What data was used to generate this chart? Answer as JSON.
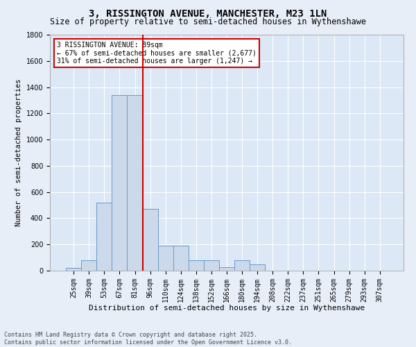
{
  "title": "3, RISSINGTON AVENUE, MANCHESTER, M23 1LN",
  "subtitle": "Size of property relative to semi-detached houses in Wythenshawe",
  "xlabel": "Distribution of semi-detached houses by size in Wythenshawe",
  "ylabel": "Number of semi-detached properties",
  "bin_labels": [
    "25sqm",
    "39sqm",
    "53sqm",
    "67sqm",
    "81sqm",
    "96sqm",
    "110sqm",
    "124sqm",
    "138sqm",
    "152sqm",
    "166sqm",
    "180sqm",
    "194sqm",
    "208sqm",
    "222sqm",
    "237sqm",
    "251sqm",
    "265sqm",
    "279sqm",
    "293sqm",
    "307sqm"
  ],
  "bar_values": [
    20,
    80,
    520,
    1340,
    1340,
    470,
    190,
    190,
    80,
    80,
    25,
    80,
    50,
    0,
    0,
    0,
    0,
    0,
    0,
    0,
    0
  ],
  "bar_color": "#ccd9ea",
  "bar_edge_color": "#6699cc",
  "property_bin_index": 4,
  "annotation_title": "3 RISSINGTON AVENUE: 89sqm",
  "annotation_line1": "← 67% of semi-detached houses are smaller (2,677)",
  "annotation_line2": "31% of semi-detached houses are larger (1,247) →",
  "vline_color": "#cc0000",
  "annotation_box_facecolor": "#ffffff",
  "annotation_box_edgecolor": "#cc0000",
  "ylim": [
    0,
    1800
  ],
  "yticks": [
    0,
    200,
    400,
    600,
    800,
    1000,
    1200,
    1400,
    1600,
    1800
  ],
  "footer_line1": "Contains HM Land Registry data © Crown copyright and database right 2025.",
  "footer_line2": "Contains public sector information licensed under the Open Government Licence v3.0.",
  "fig_facecolor": "#e8eef8",
  "plot_facecolor": "#dce8f5",
  "grid_color": "#ffffff",
  "title_fontsize": 10,
  "subtitle_fontsize": 8.5,
  "ylabel_fontsize": 7.5,
  "xlabel_fontsize": 8,
  "tick_fontsize": 7,
  "annotation_fontsize": 7,
  "footer_fontsize": 6
}
